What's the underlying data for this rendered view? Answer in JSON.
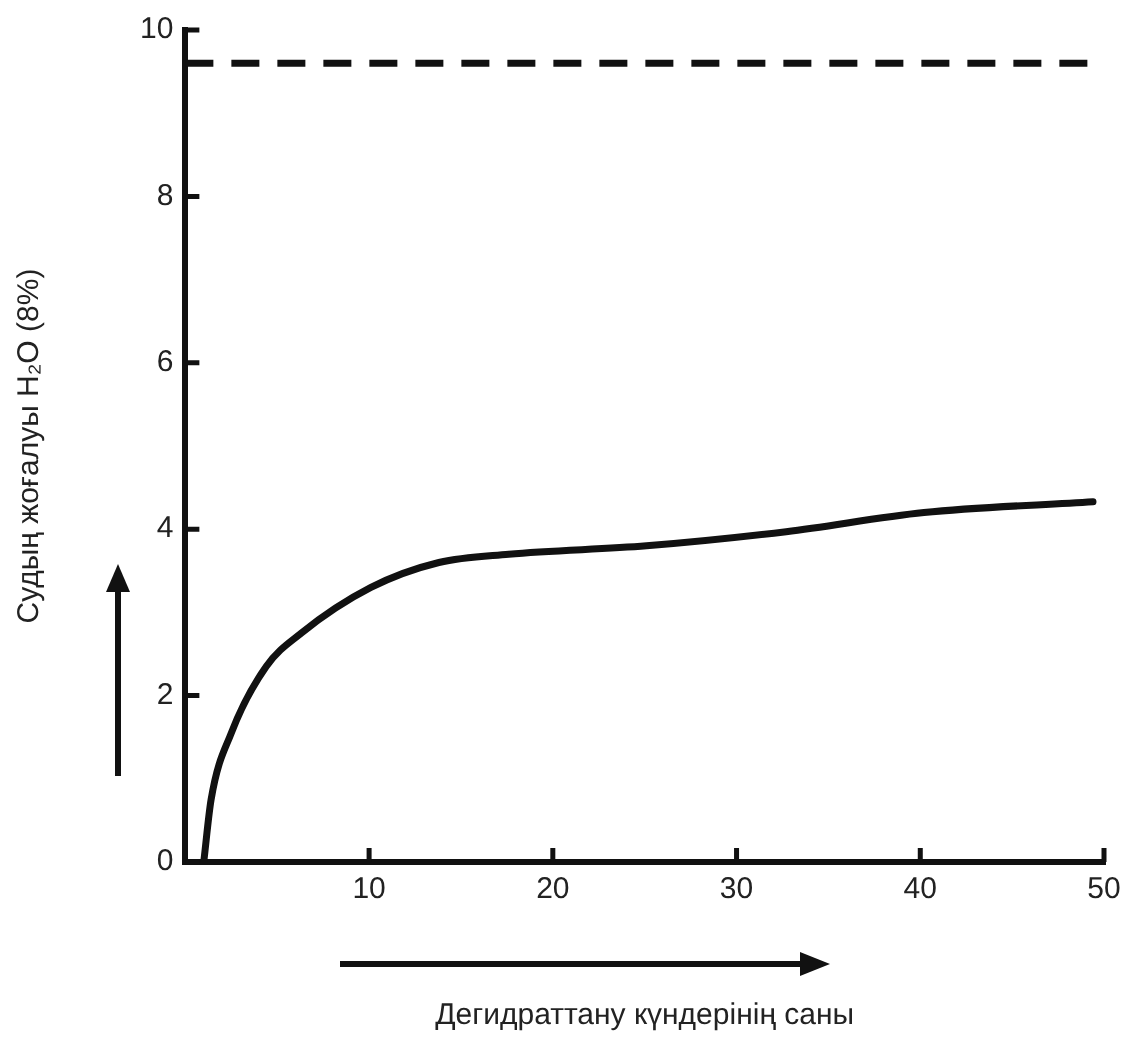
{
  "chart_data": {
    "type": "line",
    "xlabel": "Дегидраттану күндерінің саны",
    "ylabel": "Судың жоғалуы H₂O (8%)",
    "x": [
      1.0,
      1.4,
      2.5,
      4.4,
      6.3,
      10.1,
      13.8,
      17.6,
      25.1,
      32.7,
      40.2,
      49.4
    ],
    "series": [
      {
        "color": "#111111",
        "values": [
          0,
          0.75,
          1.55,
          2.35,
          2.75,
          3.3,
          3.6,
          3.7,
          3.8,
          3.97,
          4.2,
          4.33
        ]
      }
    ],
    "xlim": [
      0,
      50
    ],
    "xticks": [
      10,
      20,
      30,
      40,
      50
    ],
    "ylim": [
      0,
      10
    ],
    "yticks": [
      0,
      2,
      4,
      6,
      8,
      10
    ],
    "ref_lines": [
      {
        "axis": "y",
        "value": 9.6,
        "color": "#111111",
        "line_style": "dashed"
      }
    ],
    "grid": false,
    "legend": false,
    "marker": "none",
    "line_style": "solid"
  }
}
